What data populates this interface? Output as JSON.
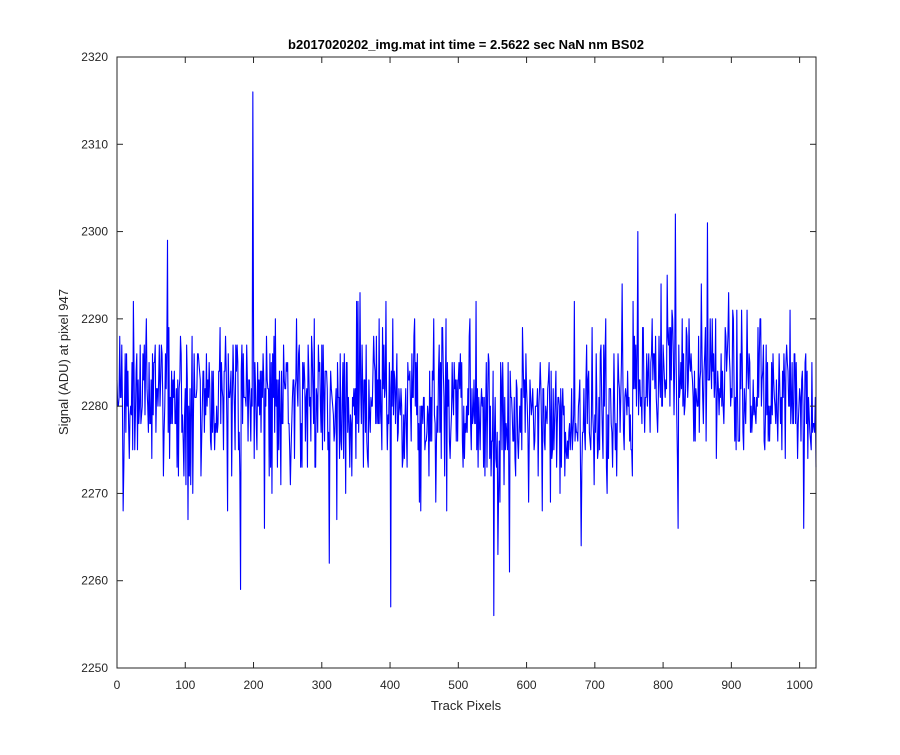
{
  "chart_data": {
    "type": "line",
    "title": "b2017020202_img.mat int time = 2.5622 sec  NaN nm BS02",
    "xlabel": "Track Pixels",
    "ylabel": "Signal (ADU) at pixel 947",
    "xlim": [
      0,
      1024
    ],
    "ylim": [
      2250,
      2320
    ],
    "xticks": [
      "0",
      "100",
      "200",
      "300",
      "400",
      "500",
      "600",
      "700",
      "800",
      "900",
      "1000"
    ],
    "yticks": [
      "2250",
      "2260",
      "2270",
      "2280",
      "2290",
      "2300",
      "2310",
      "2320"
    ],
    "grid": false,
    "line_color": "#0000ff",
    "series": [
      {
        "name": "",
        "noise_model": {
          "baseline_points": [
            [
              0,
              2281
            ],
            [
              200,
              2281.5
            ],
            [
              400,
              2281
            ],
            [
              550,
              2279
            ],
            [
              680,
              2279
            ],
            [
              780,
              2283
            ],
            [
              880,
              2284
            ],
            [
              1024,
              2280
            ]
          ],
          "spread_adu": 4.5,
          "seed": 947
        },
        "features": [
          {
            "x": 9,
            "y": 2268
          },
          {
            "x": 74,
            "y": 2299
          },
          {
            "x": 104,
            "y": 2267
          },
          {
            "x": 181,
            "y": 2259
          },
          {
            "x": 199,
            "y": 2316
          },
          {
            "x": 216,
            "y": 2266
          },
          {
            "x": 311,
            "y": 2262
          },
          {
            "x": 401,
            "y": 2257
          },
          {
            "x": 552,
            "y": 2256
          },
          {
            "x": 558,
            "y": 2263
          },
          {
            "x": 575,
            "y": 2261
          },
          {
            "x": 680,
            "y": 2264
          },
          {
            "x": 763,
            "y": 2300
          },
          {
            "x": 818,
            "y": 2302
          },
          {
            "x": 822,
            "y": 2266
          },
          {
            "x": 865,
            "y": 2301
          },
          {
            "x": 1006,
            "y": 2266
          }
        ]
      }
    ]
  }
}
